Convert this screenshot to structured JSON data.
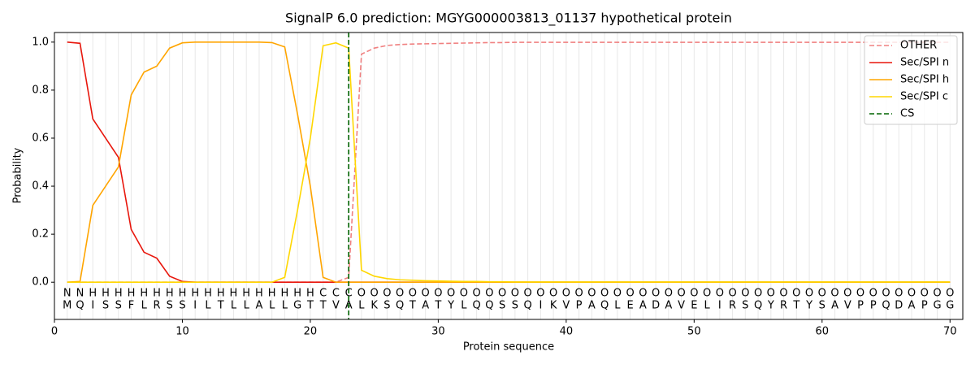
{
  "chart_data": {
    "type": "line",
    "title": "SignalP 6.0 prediction: MGYG000003813_01137 hypothetical protein",
    "xlabel": "Protein sequence",
    "ylabel": "Probability",
    "x": [
      1,
      2,
      3,
      4,
      5,
      6,
      7,
      8,
      9,
      10,
      11,
      12,
      13,
      14,
      15,
      16,
      17,
      18,
      19,
      20,
      21,
      22,
      23,
      24,
      25,
      26,
      27,
      28,
      29,
      30,
      31,
      32,
      33,
      34,
      35,
      36,
      37,
      38,
      39,
      40,
      41,
      42,
      43,
      44,
      45,
      46,
      47,
      48,
      49,
      50,
      51,
      52,
      53,
      54,
      55,
      56,
      57,
      58,
      59,
      60,
      61,
      62,
      63,
      64,
      65,
      66,
      67,
      68,
      69,
      70
    ],
    "xlim": [
      0,
      71
    ],
    "xticks": [
      0,
      10,
      20,
      30,
      40,
      50,
      60,
      70
    ],
    "ylim": [
      -0.155,
      1.04
    ],
    "yticks": [
      {
        "value": 0,
        "label": "0.0"
      },
      0.2,
      0.4,
      0.6,
      0.8,
      {
        "value": 1,
        "label": "1.0"
      }
    ],
    "residues": [
      "M",
      "Q",
      "I",
      "S",
      "S",
      "F",
      "L",
      "R",
      "S",
      "S",
      "I",
      "L",
      "T",
      "L",
      "L",
      "A",
      "L",
      "L",
      "G",
      "T",
      "T",
      "V",
      "A",
      "L",
      "K",
      "S",
      "Q",
      "T",
      "A",
      "T",
      "Y",
      "L",
      "Q",
      "Q",
      "S",
      "S",
      "Q",
      "I",
      "K",
      "V",
      "P",
      "A",
      "Q",
      "L",
      "E",
      "A",
      "D",
      "A",
      "V",
      "E",
      "L",
      "I",
      "R",
      "S",
      "Q",
      "Y",
      "R",
      "T",
      "Y",
      "S",
      "A",
      "V",
      "P",
      "P",
      "Q",
      "D",
      "A",
      "P",
      "G",
      "G"
    ],
    "regions": [
      "N",
      "N",
      "H",
      "H",
      "H",
      "H",
      "H",
      "H",
      "H",
      "H",
      "H",
      "H",
      "H",
      "H",
      "H",
      "H",
      "H",
      "H",
      "H",
      "H",
      "C",
      "C",
      "C",
      "O",
      "O",
      "O",
      "O",
      "O",
      "O",
      "O",
      "O",
      "O",
      "O",
      "O",
      "O",
      "O",
      "O",
      "O",
      "O",
      "O",
      "O",
      "O",
      "O",
      "O",
      "O",
      "O",
      "O",
      "O",
      "O",
      "O",
      "O",
      "O",
      "O",
      "O",
      "O",
      "O",
      "O",
      "O",
      "O",
      "O",
      "O",
      "O",
      "O",
      "O",
      "O",
      "O",
      "O",
      "O",
      "O",
      "O"
    ],
    "region_colors": {
      "N": "#e8160c",
      "H": "#ffa500",
      "C": "#ffd700",
      "O": "#808080"
    },
    "series": [
      {
        "name": "OTHER",
        "color": "#f08080",
        "dashed": true,
        "values": [
          0,
          0,
          0,
          0,
          0,
          0,
          0,
          0,
          0,
          0,
          0,
          0,
          0,
          0,
          0,
          0,
          0,
          0,
          0,
          0,
          0,
          0,
          0.02,
          0.95,
          0.975,
          0.986,
          0.99,
          0.992,
          0.993,
          0.994,
          0.995,
          0.996,
          0.997,
          0.998,
          0.998,
          0.999,
          0.999,
          0.999,
          0.999,
          0.999,
          0.999,
          0.999,
          0.999,
          0.999,
          0.999,
          0.999,
          0.999,
          0.999,
          0.999,
          0.999,
          0.999,
          0.999,
          0.999,
          0.999,
          0.999,
          0.999,
          0.999,
          0.999,
          0.999,
          0.999,
          0.999,
          0.999,
          0.999,
          0.999,
          0.999,
          0.999,
          0.999,
          0.999,
          0.999,
          0.999
        ]
      },
      {
        "name": "Sec/SPI n",
        "color": "#e8160c",
        "dashed": false,
        "values": [
          1.0,
          0.995,
          0.68,
          0.6,
          0.52,
          0.22,
          0.125,
          0.1,
          0.025,
          0.003,
          0,
          0,
          0,
          0,
          0,
          0,
          0,
          0,
          0,
          0,
          0,
          0,
          0,
          0,
          0,
          0,
          0,
          0,
          0,
          0,
          0,
          0,
          0,
          0,
          0,
          0,
          0,
          0,
          0,
          0,
          0,
          0,
          0,
          0,
          0,
          0,
          0,
          0,
          0,
          0,
          0,
          0,
          0,
          0,
          0,
          0,
          0,
          0,
          0,
          0,
          0,
          0,
          0,
          0,
          0,
          0,
          0,
          0,
          0,
          0
        ]
      },
      {
        "name": "Sec/SPI h",
        "color": "#ffa500",
        "dashed": false,
        "values": [
          0,
          0.003,
          0.32,
          0.4,
          0.48,
          0.78,
          0.875,
          0.9,
          0.975,
          0.997,
          1,
          1,
          1,
          1,
          1,
          1,
          0.998,
          0.98,
          0.7,
          0.4,
          0.02,
          0,
          0,
          0,
          0,
          0,
          0,
          0,
          0,
          0,
          0,
          0,
          0,
          0,
          0,
          0,
          0,
          0,
          0,
          0,
          0,
          0,
          0,
          0,
          0,
          0,
          0,
          0,
          0,
          0,
          0,
          0,
          0,
          0,
          0,
          0,
          0,
          0,
          0,
          0,
          0,
          0,
          0,
          0,
          0,
          0,
          0,
          0,
          0,
          0
        ]
      },
      {
        "name": "Sec/SPI c",
        "color": "#ffd700",
        "dashed": false,
        "values": [
          0,
          0,
          0,
          0,
          0,
          0,
          0,
          0,
          0,
          0,
          0,
          0,
          0,
          0,
          0,
          0,
          0,
          0.02,
          0.3,
          0.6,
          0.985,
          0.997,
          0.975,
          0.05,
          0.025,
          0.015,
          0.01,
          0.008,
          0.006,
          0.005,
          0.004,
          0.003,
          0.003,
          0.002,
          0.002,
          0.001,
          0.001,
          0.001,
          0.001,
          0.001,
          0.001,
          0.001,
          0.001,
          0.001,
          0.001,
          0.001,
          0.001,
          0.001,
          0.001,
          0.001,
          0.001,
          0.001,
          0.001,
          0.001,
          0.001,
          0.001,
          0.001,
          0.001,
          0.001,
          0.001,
          0.001,
          0.001,
          0.001,
          0.001,
          0.001,
          0.001,
          0.001,
          0.001,
          0.001,
          0.001
        ]
      }
    ],
    "cleavage_site": {
      "name": "CS",
      "color": "#006400",
      "x": 23
    },
    "legend": "upper right"
  }
}
